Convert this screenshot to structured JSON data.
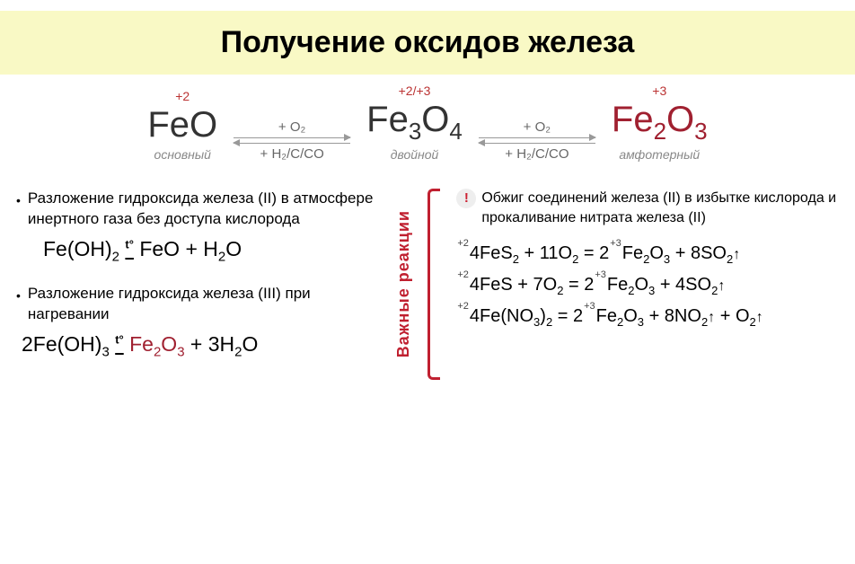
{
  "title": "Получение оксидов железа",
  "scheme": {
    "feo": {
      "ox": "+2",
      "formula_html": "FeO",
      "label": "основный",
      "color": "#333"
    },
    "fe3o4": {
      "ox": "+2/+3",
      "formula_html": "Fe<sub>3</sub>O<sub>4</sub>",
      "label": "двойной",
      "color": "#333"
    },
    "fe2o3": {
      "ox": "+3",
      "formula_html": "Fe<sub>2</sub>O<sub>3</sub>",
      "label": "амфотерный",
      "color": "#a02030"
    },
    "forward": "+ O₂",
    "back": "+ H₂/C/CO"
  },
  "left": {
    "b1": "Разложение гидроксида железа (II) в атмосфере инертного газа без доступа кислорода",
    "eq1_html": "Fe(OH)<sub>2</sub> <span class='under'><span class='t'>t°</span></span> FeO + H<sub>2</sub>O",
    "b2": "Разложение гидроксида железа (III) при нагревании",
    "eq2_html": "2Fe(OH)<sub>3</sub> <span class='under'><span class='t'>t°</span></span> <span class='red'>Fe<sub>2</sub>O<sub>3</sub></span> + 3H<sub>2</sub>O"
  },
  "vlabel": "Важные реакции",
  "right": {
    "intro": "Обжиг соединений железа (II) в избытке кислорода и прокаливание нитрата железа (II)",
    "r1_html": "<span class='ox'>+2</span>4FeS<sub>2</sub> + 11O<sub>2</sub> = 2<span class='ox'>+3</span>Fe<sub>2</sub>O<sub>3</sub> + 8SO<sub>2</sub><span class='arrow-up'>↑</span>",
    "r2_html": "<span class='ox'>+2</span>4FeS + 7O<sub>2</sub> = 2<span class='ox'>+3</span>Fe<sub>2</sub>O<sub>3</sub> + 4SO<sub>2</sub><span class='arrow-up'>↑</span>",
    "r3_html": "<span class='ox'>+2</span>4Fe(NO<sub>3</sub>)<sub>2</sub> = 2<span class='ox'>+3</span>Fe<sub>2</sub>O<sub>3</sub> + 8NO<sub>2</sub><span class='arrow-up'>↑</span> + O<sub>2</sub><span class='arrow-up'>↑</span>"
  },
  "colors": {
    "title_bg": "#f9f9c5",
    "accent": "#a02030",
    "bracket": "#c02030",
    "gray": "#888"
  }
}
